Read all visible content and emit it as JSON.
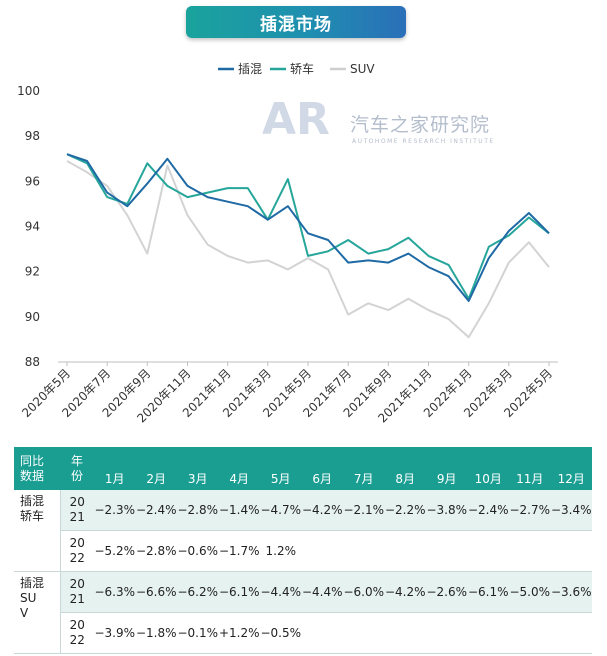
{
  "title": "插混市场",
  "watermark": {
    "logo": "AR",
    "name": "汽车之家研究院",
    "sub": "AUTOHOME RESEARCH INSTITUTE"
  },
  "colors": {
    "phev": "#1f6aa5",
    "sedan": "#26a69a",
    "suv": "#d3d3d3",
    "header": "#1a9e92"
  },
  "chart_data": {
    "type": "line",
    "x": [
      "2020年5月",
      "2020年6月",
      "2020年7月",
      "2020年8月",
      "2020年9月",
      "2020年10月",
      "2020年11月",
      "2020年12月",
      "2021年1月",
      "2021年2月",
      "2021年3月",
      "2021年4月",
      "2021年5月",
      "2021年6月",
      "2021年7月",
      "2021年8月",
      "2021年9月",
      "2021年10月",
      "2021年11月",
      "2021年12月",
      "2022年1月",
      "2022年2月",
      "2022年3月",
      "2022年4月",
      "2022年5月"
    ],
    "tick_labels": [
      "2020年5月",
      "2020年7月",
      "2020年9月",
      "2020年11月",
      "2021年1月",
      "2021年3月",
      "2021年5月",
      "2021年7月",
      "2021年9月",
      "2021年11月",
      "2022年1月",
      "2022年3月",
      "2022年5月"
    ],
    "ylim": [
      88,
      100
    ],
    "yticks": [
      88,
      90,
      92,
      94,
      96,
      98,
      100
    ],
    "grid": false,
    "legend_position": "top",
    "series": [
      {
        "name": "插混",
        "color": "#1f6aa5",
        "values": [
          97.2,
          96.9,
          95.5,
          94.9,
          95.9,
          97.0,
          95.8,
          95.3,
          95.1,
          94.9,
          94.3,
          94.9,
          93.7,
          93.4,
          92.4,
          92.5,
          92.4,
          92.8,
          92.2,
          91.8,
          90.7,
          92.6,
          93.8,
          94.6,
          93.7
        ]
      },
      {
        "name": "轿车",
        "color": "#26a69a",
        "values": [
          97.2,
          96.8,
          95.3,
          95.0,
          96.8,
          95.8,
          95.3,
          95.5,
          95.7,
          95.7,
          94.3,
          96.1,
          92.7,
          92.9,
          93.4,
          92.8,
          93.0,
          93.5,
          92.7,
          92.3,
          90.8,
          93.1,
          93.6,
          94.4,
          93.7
        ]
      },
      {
        "name": "SUV",
        "color": "#d3d3d3",
        "values": [
          96.9,
          96.4,
          95.8,
          94.5,
          92.8,
          96.7,
          94.5,
          93.2,
          92.7,
          92.4,
          92.5,
          92.1,
          92.6,
          92.1,
          90.1,
          90.6,
          90.3,
          90.8,
          90.3,
          89.9,
          89.1,
          90.6,
          92.4,
          93.3,
          92.2
        ]
      }
    ]
  },
  "table": {
    "header_left": [
      "同比",
      "数据"
    ],
    "header_year": [
      "年",
      "份"
    ],
    "months": [
      "1月",
      "2月",
      "3月",
      "4月",
      "5月",
      "6月",
      "7月",
      "8月",
      "9月",
      "10月",
      "11月",
      "12月"
    ],
    "groups": [
      {
        "category": [
          "插混",
          "轿车"
        ],
        "rows": [
          {
            "year": [
              "20",
              "21"
            ],
            "values": [
              "−2.3%",
              "−2.4%",
              "−2.8%",
              "−1.4%",
              "−4.7%",
              "−4.2%",
              "−2.1%",
              "−2.2%",
              "−3.8%",
              "−2.4%",
              "−2.7%",
              "−3.4%"
            ]
          },
          {
            "year": [
              "20",
              "22"
            ],
            "values": [
              "−5.2%",
              "−2.8%",
              "−0.6%",
              "−1.7%",
              "1.2%",
              "",
              "",
              "",
              "",
              "",
              "",
              ""
            ]
          }
        ]
      },
      {
        "category": [
          "插混",
          "SU",
          "V"
        ],
        "rows": [
          {
            "year": [
              "20",
              "21"
            ],
            "values": [
              "−6.3%",
              "−6.6%",
              "−6.2%",
              "−6.1%",
              "−4.4%",
              "−4.4%",
              "−6.0%",
              "−4.2%",
              "−2.6%",
              "−6.1%",
              "−5.0%",
              "−3.6%"
            ]
          },
          {
            "year": [
              "20",
              "22"
            ],
            "values": [
              "−3.9%",
              "−1.8%",
              "−0.1%",
              "+1.2%",
              "−0.5%",
              "",
              "",
              "",
              "",
              "",
              "",
              ""
            ]
          }
        ]
      }
    ]
  }
}
